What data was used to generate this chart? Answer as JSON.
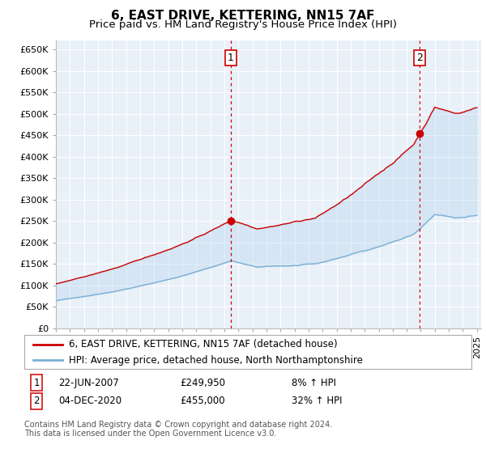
{
  "title": "6, EAST DRIVE, KETTERING, NN15 7AF",
  "subtitle": "Price paid vs. HM Land Registry's House Price Index (HPI)",
  "ylabel_ticks": [
    "£0",
    "£50K",
    "£100K",
    "£150K",
    "£200K",
    "£250K",
    "£300K",
    "£350K",
    "£400K",
    "£450K",
    "£500K",
    "£550K",
    "£600K",
    "£650K"
  ],
  "ytick_values": [
    0,
    50000,
    100000,
    150000,
    200000,
    250000,
    300000,
    350000,
    400000,
    450000,
    500000,
    550000,
    600000,
    650000
  ],
  "ylim": [
    0,
    670000
  ],
  "xlim_start": 1995.0,
  "xlim_end": 2025.3,
  "sale1_x": 2007.47,
  "sale1_y": 249950,
  "sale1_label": "1",
  "sale2_x": 2020.92,
  "sale2_y": 455000,
  "sale2_label": "2",
  "line_red_color": "#cc0000",
  "line_blue_color": "#7ab0d4",
  "fill_color": "#ddeeff",
  "background_color": "#ffffff",
  "chart_bg_color": "#e8f0f8",
  "grid_color": "#ffffff",
  "legend_label_red": "6, EAST DRIVE, KETTERING, NN15 7AF (detached house)",
  "legend_label_blue": "HPI: Average price, detached house, North Northamptonshire",
  "annotation1_date": "22-JUN-2007",
  "annotation1_price": "£249,950",
  "annotation1_hpi": "8% ↑ HPI",
  "annotation2_date": "04-DEC-2020",
  "annotation2_price": "£455,000",
  "annotation2_hpi": "32% ↑ HPI",
  "footnote": "Contains HM Land Registry data © Crown copyright and database right 2024.\nThis data is licensed under the Open Government Licence v3.0.",
  "title_fontsize": 11,
  "subtitle_fontsize": 9.5,
  "tick_fontsize": 8,
  "legend_fontsize": 8.5,
  "annotation_fontsize": 8.5,
  "footnote_fontsize": 7
}
